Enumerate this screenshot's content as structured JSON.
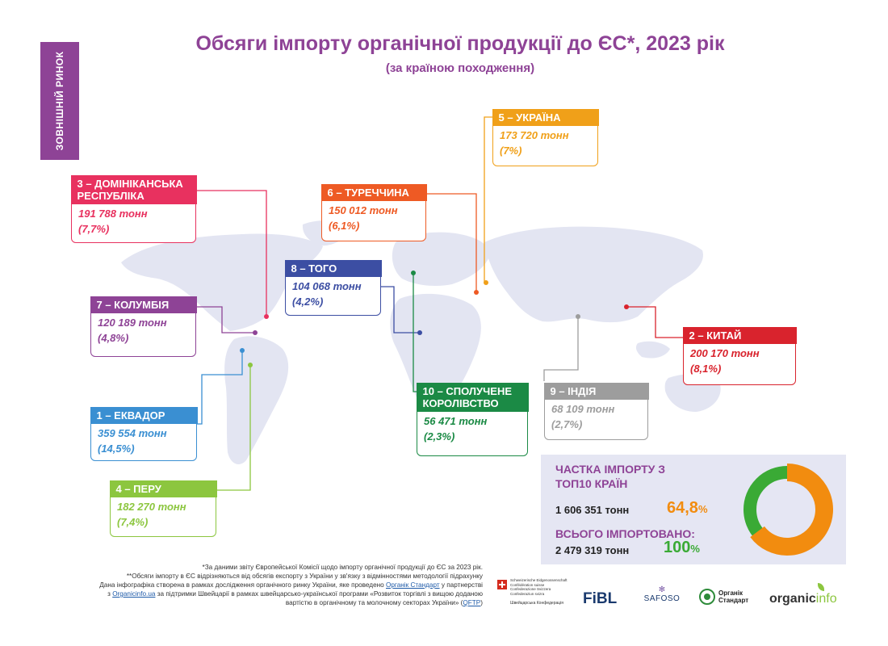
{
  "side_label": "ЗОВНІШНІЙ РИНОК",
  "title": "Обсяги імпорту органічної продукції до ЄС*, 2023 рік",
  "subtitle": "(за країною походження)",
  "colors": {
    "purple": "#8e4396",
    "ecuador": "#3a8fd2",
    "china": "#d9232d",
    "dominican": "#e8315f",
    "peru": "#8cc63f",
    "ukraine": "#f0a019",
    "turkey": "#ee5a24",
    "colombia": "#8e4396",
    "togo": "#3c4ea3",
    "india": "#9d9d9d",
    "uk": "#1b8a45",
    "donut_orange": "#f28c0f",
    "donut_green": "#3aaa35"
  },
  "chart_data": {
    "type": "table",
    "unit": "тонн",
    "countries": [
      {
        "rank": 1,
        "header": "1 – ЕКВАДОР",
        "value": "359 554 тонн",
        "share": "(14,5%)",
        "tonnes": 359554,
        "percent": 14.5
      },
      {
        "rank": 2,
        "header": "2 – КИТАЙ",
        "value": "200 170 тонн",
        "share": "(8,1%)",
        "tonnes": 200170,
        "percent": 8.1
      },
      {
        "rank": 3,
        "header": "3 – ДОМІНІКАНСЬКА РЕСПУБЛІКА",
        "value": "191 788 тонн",
        "share": "(7,7%)",
        "tonnes": 191788,
        "percent": 7.7
      },
      {
        "rank": 4,
        "header": "4 – ПЕРУ",
        "value": "182 270 тонн",
        "share": "(7,4%)",
        "tonnes": 182270,
        "percent": 7.4
      },
      {
        "rank": 5,
        "header": "5 – УКРАЇНА",
        "value": "173 720 тонн",
        "share": "(7%)",
        "tonnes": 173720,
        "percent": 7
      },
      {
        "rank": 6,
        "header": "6 – ТУРЕЧЧИНА",
        "value": "150 012 тонн",
        "share": "(6,1%)",
        "tonnes": 150012,
        "percent": 6.1
      },
      {
        "rank": 7,
        "header": "7 – КОЛУМБІЯ",
        "value": "120 189 тонн",
        "share": "(4,8%)",
        "tonnes": 120189,
        "percent": 4.8
      },
      {
        "rank": 8,
        "header": "8 – ТОГО",
        "value": "104 068 тонн",
        "share": "(4,2%)",
        "tonnes": 104068,
        "percent": 4.2
      },
      {
        "rank": 9,
        "header": "9 – ІНДІЯ",
        "value": "68 109 тонн",
        "share": "(2,7%)",
        "tonnes": 68109,
        "percent": 2.7
      },
      {
        "rank": 10,
        "header": "10 – СПОЛУЧЕНЕ КОРОЛІВСТВО",
        "value": "56 471 тонн",
        "share": "(2,3%)",
        "tonnes": 56471,
        "percent": 2.3
      }
    ],
    "donut": {
      "type": "pie",
      "top10_percent": 64.8,
      "total_percent": 100
    }
  },
  "summary": {
    "top10_title": "ЧАСТКА ІМПОРТУ З ТОП10 КРАЇН",
    "top10_value": "1 606 351 тонн",
    "top10_pct_num": "64,8",
    "top10_pct_sign": "%",
    "total_title": "ВСЬОГО ІМПОРТОВАНО:",
    "total_value": "2 479 319 тонн",
    "total_pct_num": "100",
    "total_pct_sign": "%"
  },
  "footnotes": {
    "line1": "*За даними звіту Європейської Комісії щодо імпорту органічної продукції до ЄС за 2023 рік.",
    "line2": "**Обсяги імпорту в ЄС відрізняються від обсягів експорту з України у зв'язку з відмінностями методології підрахунку",
    "line3": "Дана інфографіка створена в рамках дослідження органічного ринку України, яке проведено",
    "link1": "Органік Стандарт",
    "line3b": "у партнерстві",
    "line4a": "з",
    "link2": "Organicinfo.ua",
    "line4b": "за підтримки Швейцарії в рамках швейцарсько-української програми «Розвиток торгівлі з вищою доданою",
    "line5": "вартістю в органічному та молочному секторах України»",
    "link3": "QFTP"
  },
  "logos": {
    "swiss_lines": [
      "Schweizerische Eidgenossenschaft",
      "Confédération suisse",
      "Confederazione Svizzera",
      "Confederaziun svizra"
    ],
    "swiss_ua": "Швейцарська Конфедерація",
    "fibl": "FiBL",
    "safoso": "SAFOSO",
    "organic_standard_1": "Органік",
    "organic_standard_2": "Стандарт",
    "organicinfo_a": "organic",
    "organicinfo_b": "info"
  }
}
